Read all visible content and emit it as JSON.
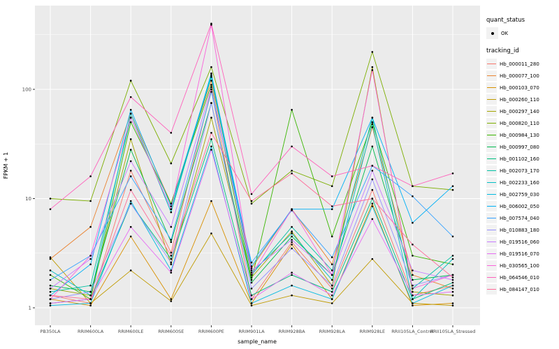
{
  "figure": {
    "background": "#FFFFFF",
    "panel_background": "#EBEBEB",
    "grid_color": "#FFFFFF",
    "tick_text_color": "#4D4D4D",
    "tick_mark_color": "#333333"
  },
  "chart_data": {
    "type": "line",
    "title": "",
    "xlabel": "sample_name",
    "ylabel": "FPKM + 1",
    "y_scale": "log10",
    "y_ticks": [
      1,
      10,
      100
    ],
    "y_minor_ticks": [
      3.162,
      31.62,
      316.2
    ],
    "ylim_log10": [
      -0.16,
      2.77
    ],
    "point_color": "#000000",
    "legend_position": "right",
    "grid": true,
    "categories": [
      "PB350LA",
      "RRIM600LA",
      "RRIM600LE",
      "RRIM600SE",
      "RRIM600PE",
      "RRIM901LA",
      "RRIM928BA",
      "RRIM928LA",
      "RRIM928LE",
      "RRII105LA_Control",
      "RRII105LA_Stressed"
    ],
    "series": [
      {
        "name": "Hb_000011_280",
        "color": "#F8766D",
        "values": [
          1.3,
          1.1,
          18,
          3.2,
          100,
          1.2,
          4,
          1.5,
          12,
          1.3,
          1.6
        ]
      },
      {
        "name": "Hb_000077_100",
        "color": "#EA8331",
        "values": [
          2.8,
          5.5,
          60,
          9,
          120,
          2.3,
          8,
          2.5,
          45,
          2,
          1.5
        ]
      },
      {
        "name": "Hb_000103_070",
        "color": "#D89000",
        "values": [
          1.2,
          1.05,
          4.5,
          1.2,
          9.5,
          1.1,
          3.8,
          1.2,
          9,
          1.05,
          1.1
        ]
      },
      {
        "name": "Hb_000260_110",
        "color": "#C09B00",
        "values": [
          2.9,
          1.1,
          2.2,
          1.15,
          4.8,
          1.05,
          1.3,
          1.1,
          2.8,
          1.1,
          1.05
        ]
      },
      {
        "name": "Hb_000297_140",
        "color": "#A3A500",
        "values": [
          1.5,
          1.3,
          35,
          2.5,
          55,
          1.9,
          5,
          1.6,
          160,
          1.4,
          1.3
        ]
      },
      {
        "name": "Hb_000820_110",
        "color": "#7CAE00",
        "values": [
          10,
          9.5,
          120,
          21,
          160,
          9,
          18,
          13,
          220,
          13,
          12
        ]
      },
      {
        "name": "Hb_000984_130",
        "color": "#39B600",
        "values": [
          2,
          1.2,
          50,
          9,
          110,
          1.8,
          65,
          4.5,
          50,
          3,
          2.5
        ]
      },
      {
        "name": "Hb_000997_080",
        "color": "#00BB4E",
        "values": [
          1.6,
          1.4,
          28,
          4,
          75,
          1.7,
          4.5,
          2,
          30,
          1.8,
          2
        ]
      },
      {
        "name": "Hb_001102_160",
        "color": "#00BF7D",
        "values": [
          1.1,
          1.2,
          9,
          2.8,
          35,
          1.3,
          2,
          1.4,
          10,
          1.2,
          1.7
        ]
      },
      {
        "name": "Hb_002073_170",
        "color": "#00C1A3",
        "values": [
          1.4,
          1.6,
          55,
          8,
          130,
          2,
          5.5,
          2.2,
          55,
          1.5,
          3
        ]
      },
      {
        "name": "Hb_002233_160",
        "color": "#00BFC4",
        "values": [
          2.2,
          1.3,
          60,
          7.5,
          140,
          2.1,
          4.8,
          1.8,
          48,
          1.2,
          2.8
        ]
      },
      {
        "name": "Hb_002759_030",
        "color": "#00BAE0",
        "values": [
          1.05,
          1.1,
          9.5,
          2.2,
          30,
          1.1,
          1.6,
          1.2,
          8.5,
          1.1,
          1.6
        ]
      },
      {
        "name": "Hb_006002_050",
        "color": "#00B0F6",
        "values": [
          1.3,
          2.5,
          65,
          8.5,
          135,
          2.4,
          8,
          8,
          55,
          6,
          13
        ]
      },
      {
        "name": "Hb_007574_040",
        "color": "#35A2FF",
        "values": [
          1.8,
          3,
          16,
          4.2,
          95,
          2.6,
          7.8,
          2.9,
          20,
          10.5,
          4.5
        ]
      },
      {
        "name": "Hb_010883_180",
        "color": "#9590FF",
        "values": [
          1.2,
          1.4,
          9,
          2.6,
          75,
          1.5,
          3.5,
          1.6,
          15,
          1.6,
          2
        ]
      },
      {
        "name": "Hb_019516_060",
        "color": "#C77CFF",
        "values": [
          1.5,
          2.8,
          22,
          5.5,
          105,
          2.2,
          4.2,
          2,
          18,
          2.2,
          1.8
        ]
      },
      {
        "name": "Hb_019516_070",
        "color": "#E76BF3",
        "values": [
          1.1,
          1.2,
          5.5,
          2.1,
          28,
          1.2,
          2.1,
          1.3,
          6.5,
          1.3,
          1.4
        ]
      },
      {
        "name": "Hb_030565_100",
        "color": "#FA62DB",
        "values": [
          1.2,
          3,
          55,
          8,
          390,
          2,
          8,
          2,
          150,
          1.5,
          2
        ]
      },
      {
        "name": "Hb_064546_010",
        "color": "#FF62BC",
        "values": [
          8,
          16,
          85,
          40,
          400,
          11,
          30,
          16,
          20,
          13,
          17
        ]
      },
      {
        "name": "Hb_084147_010",
        "color": "#FF6A98",
        "values": [
          1.3,
          1.2,
          12,
          3,
          40,
          9.5,
          17,
          8.5,
          10,
          3.8,
          1.9
        ]
      }
    ],
    "legend": {
      "quant_status": {
        "title": "quant_status",
        "items": [
          {
            "label": "OK",
            "symbol": "point"
          }
        ]
      },
      "tracking_id": {
        "title": "tracking_id"
      }
    }
  }
}
